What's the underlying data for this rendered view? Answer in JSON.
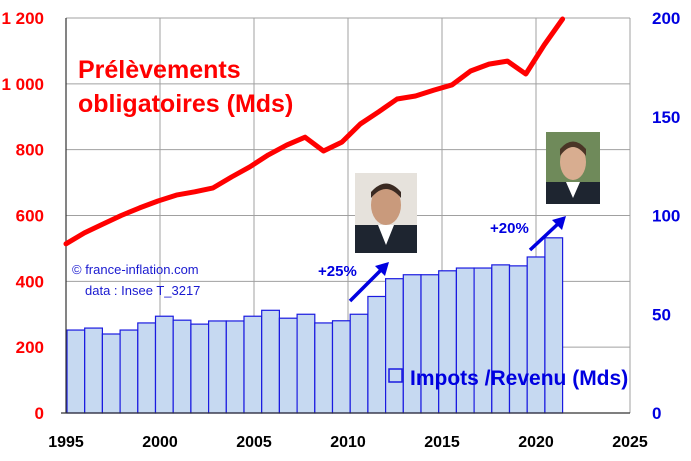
{
  "chart_data": {
    "type": "bar+line",
    "title": "Prélèvements obligatoires (Mds)",
    "title_lines": [
      "Prélèvements",
      "obligatoires (Mds)"
    ],
    "x_ticks": [
      "1995",
      "2000",
      "2005",
      "2010",
      "2015",
      "2020",
      "2025"
    ],
    "xlim": [
      1995,
      2025
    ],
    "y_left": {
      "ticks": [
        "0",
        "200",
        "400",
        "600",
        "800",
        "1 000",
        "1 200"
      ],
      "ylim": [
        0,
        1200
      ],
      "color": "#ff0000"
    },
    "y_right": {
      "ticks": [
        "0",
        "50",
        "100",
        "150",
        "200"
      ],
      "ylim": [
        0,
        200
      ],
      "color": "#0000e0"
    },
    "grid": true,
    "years": [
      1995,
      1996,
      1997,
      1998,
      1999,
      2000,
      2001,
      2002,
      2003,
      2004,
      2005,
      2006,
      2007,
      2008,
      2009,
      2010,
      2011,
      2012,
      2013,
      2014,
      2015,
      2016,
      2017,
      2018,
      2019,
      2020,
      2021,
      2022
    ],
    "series": [
      {
        "name": "Prélèvements obligatoires (Mds)",
        "type": "line",
        "axis": "left",
        "color": "#ff0000",
        "values": [
          514,
          547,
          574,
          600,
          623,
          644,
          662,
          672,
          684,
          717,
          748,
          784,
          814,
          838,
          796,
          823,
          878,
          915,
          954,
          963,
          981,
          997,
          1039,
          1060,
          1069,
          1030,
          1118,
          1197
        ]
      },
      {
        "name": "Impots /Revenu (Mds)",
        "type": "bar",
        "axis": "right",
        "color": "#c6d9f1",
        "edge": "#1a1ae0",
        "values": [
          42,
          43,
          40,
          42,
          45.6,
          49,
          47,
          45,
          46.6,
          46.6,
          49,
          52,
          48,
          50,
          45.6,
          46.7,
          50,
          59,
          68,
          70,
          70,
          72,
          73.4,
          73.4,
          75,
          74.5,
          79,
          88.7
        ]
      }
    ],
    "legend": {
      "label": "Impots /Revenu (Mds)",
      "placement": "bottom-right"
    },
    "annotations": {
      "source_line1": "© france-inflation.com",
      "source_line2": "data : Insee T_3217",
      "hollande_increase": "+25%",
      "macron_increase": "+20%"
    }
  }
}
